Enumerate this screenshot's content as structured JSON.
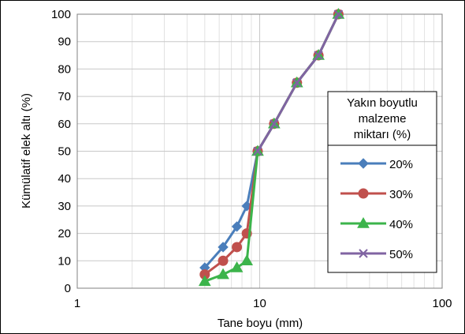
{
  "chart_data": {
    "type": "line",
    "x_scale": "log",
    "xlabel": "Tane boyu (mm)",
    "ylabel": "Kümülatif elek altı (%)",
    "xlim": [
      1,
      100
    ],
    "ylim": [
      0,
      100
    ],
    "x_ticks": [
      "1",
      "10",
      "100"
    ],
    "y_ticks": [
      "0",
      "10",
      "20",
      "30",
      "40",
      "50",
      "60",
      "70",
      "80",
      "90",
      "100"
    ],
    "grid": true,
    "legend": {
      "title": "Yakın boyutlu malzeme miktarı (%)",
      "title_lines": [
        "Yakın boyutlu",
        "malzeme",
        "miktarı (%)"
      ],
      "placement": "right"
    },
    "series": [
      {
        "name": "20%",
        "color": "#4a7ebb",
        "marker": "diamond",
        "x": [
          5,
          6.3,
          7.5,
          8.5,
          9.75,
          12,
          16,
          21,
          27
        ],
        "y": [
          7.5,
          15,
          22.5,
          30,
          50,
          60,
          75,
          85,
          100
        ]
      },
      {
        "name": "30%",
        "color": "#c0504d",
        "marker": "circle",
        "x": [
          5,
          6.3,
          7.5,
          8.5,
          9.75,
          12,
          16,
          21,
          27
        ],
        "y": [
          5,
          10,
          15,
          20,
          50,
          60,
          75,
          85,
          100
        ]
      },
      {
        "name": "40%",
        "color": "#3cb44b",
        "marker": "triangle",
        "x": [
          5,
          6.3,
          7.5,
          8.5,
          9.75,
          12,
          16,
          21,
          27
        ],
        "y": [
          2.5,
          5,
          7.5,
          10,
          50,
          60,
          75,
          85,
          100
        ]
      },
      {
        "name": "50%",
        "color": "#8064a2",
        "marker": "x",
        "x": [
          9.75,
          12,
          16,
          21,
          27
        ],
        "y": [
          50,
          60,
          75,
          85,
          100
        ]
      }
    ]
  }
}
